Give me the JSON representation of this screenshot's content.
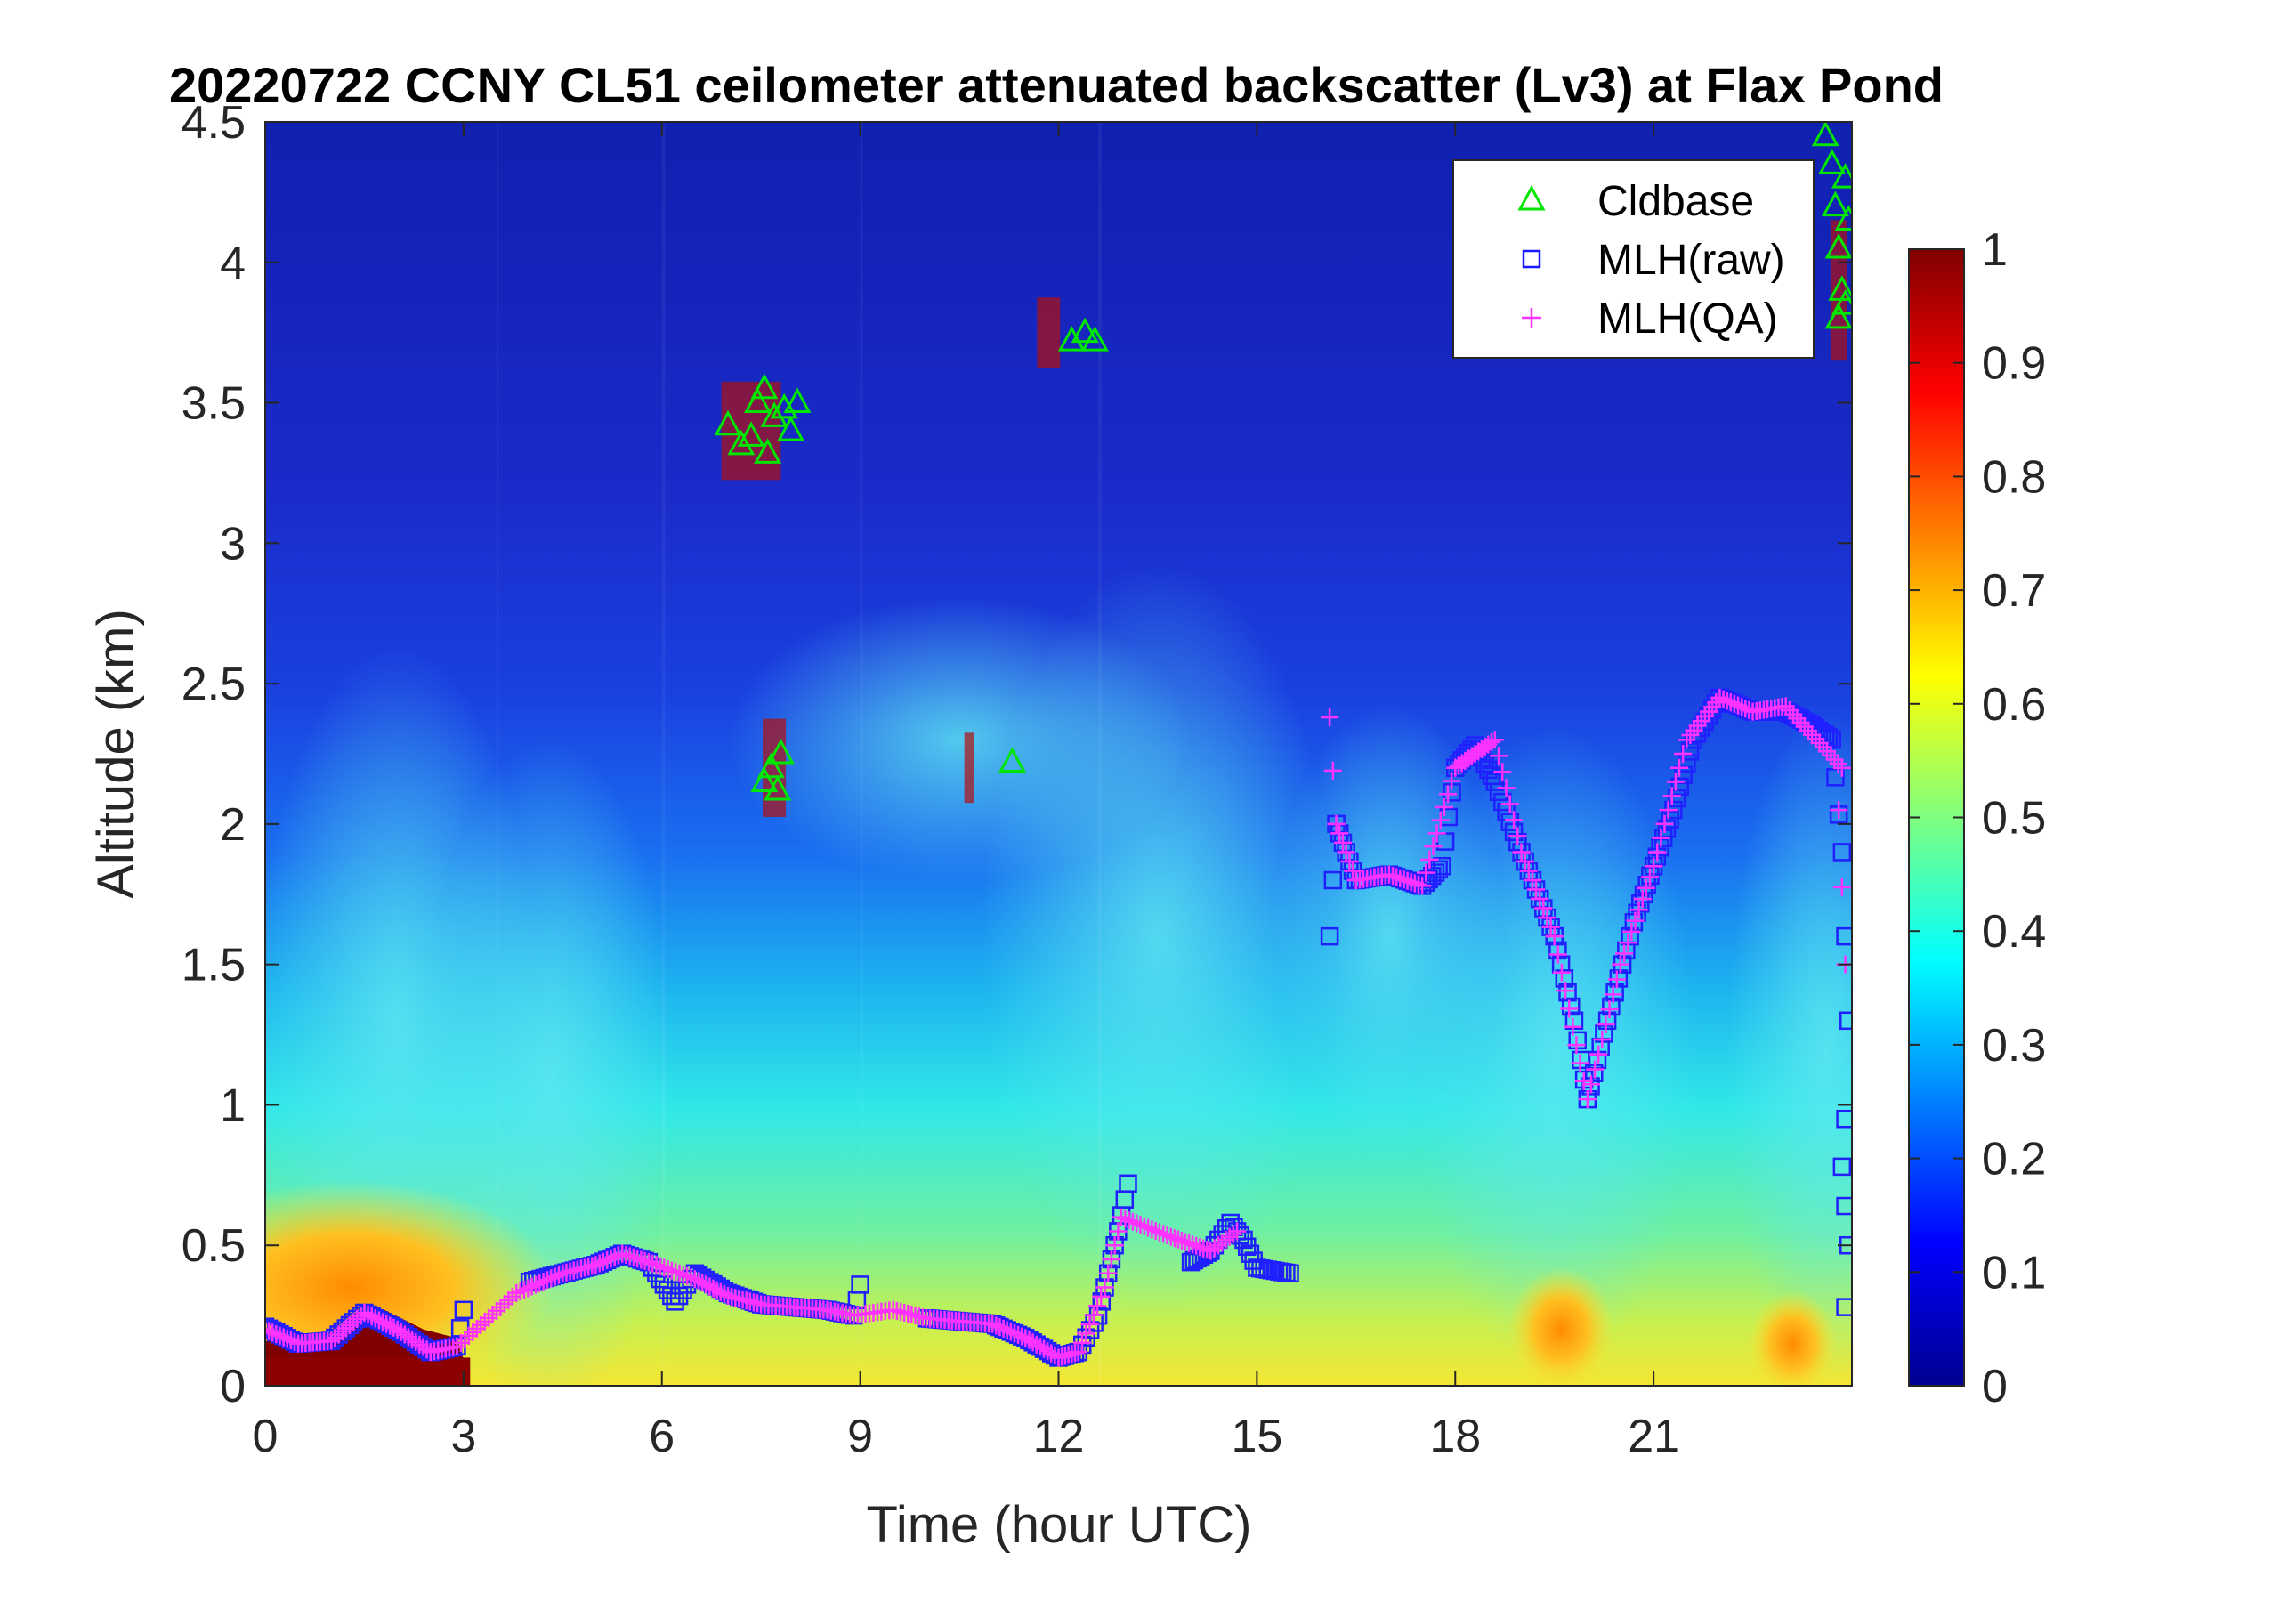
{
  "chart_data": {
    "type": "heatmap",
    "title": "20220722 CCNY CL51 ceilometer attenuated backscatter (Lv3) at Flax Pond",
    "xlabel": "Time (hour UTC)",
    "ylabel": "Altitude (km)",
    "xlim": [
      0,
      24
    ],
    "ylim": [
      0,
      4.5
    ],
    "xticks": [
      "0",
      "3",
      "6",
      "9",
      "12",
      "15",
      "18",
      "21"
    ],
    "yticks": [
      "0",
      "0.5",
      "1",
      "1.5",
      "2",
      "2.5",
      "3",
      "3.5",
      "4",
      "4.5"
    ],
    "colorbar": {
      "range": [
        0,
        1
      ],
      "ticks": [
        "0",
        "0.1",
        "0.2",
        "0.3",
        "0.4",
        "0.5",
        "0.6",
        "0.7",
        "0.8",
        "0.9",
        "1"
      ],
      "colormap": "jet"
    },
    "legend": {
      "position": "top-right",
      "entries": [
        {
          "name": "Cldbase",
          "marker": "triangle",
          "color": "#00e600"
        },
        {
          "name": "MLH(raw)",
          "marker": "square",
          "color": "#1a1aff"
        },
        {
          "name": "MLH(QA)",
          "marker": "plus",
          "color": "#ff33ff"
        }
      ]
    },
    "series": [
      {
        "name": "Cldbase",
        "points": [
          [
            7.0,
            3.42
          ],
          [
            7.2,
            3.35
          ],
          [
            7.35,
            3.38
          ],
          [
            7.45,
            3.5
          ],
          [
            7.55,
            3.55
          ],
          [
            7.6,
            3.32
          ],
          [
            7.7,
            3.45
          ],
          [
            7.85,
            3.48
          ],
          [
            7.95,
            3.4
          ],
          [
            8.05,
            3.5
          ],
          [
            7.55,
            2.15
          ],
          [
            7.65,
            2.2
          ],
          [
            7.75,
            2.12
          ],
          [
            7.8,
            2.25
          ],
          [
            11.3,
            2.22
          ],
          [
            12.2,
            3.72
          ],
          [
            12.4,
            3.75
          ],
          [
            12.55,
            3.72
          ],
          [
            23.6,
            4.45
          ],
          [
            23.7,
            4.35
          ],
          [
            23.75,
            4.2
          ],
          [
            23.8,
            4.05
          ],
          [
            23.85,
            3.9
          ],
          [
            23.9,
            4.3
          ],
          [
            23.95,
            4.15
          ],
          [
            23.8,
            3.8
          ],
          [
            23.9,
            3.85
          ]
        ]
      },
      {
        "name": "MLH(raw)",
        "points": [
          [
            0.0,
            0.21
          ],
          [
            0.5,
            0.15
          ],
          [
            1.0,
            0.16
          ],
          [
            1.5,
            0.26
          ],
          [
            2.0,
            0.2
          ],
          [
            2.5,
            0.12
          ],
          [
            2.9,
            0.14
          ],
          [
            3.0,
            0.27
          ],
          [
            4.0,
            0.37
          ],
          [
            4.5,
            0.4
          ],
          [
            5.0,
            0.43
          ],
          [
            5.4,
            0.47
          ],
          [
            5.8,
            0.44
          ],
          [
            6.2,
            0.3
          ],
          [
            6.5,
            0.4
          ],
          [
            7.0,
            0.33
          ],
          [
            7.5,
            0.29
          ],
          [
            8.0,
            0.28
          ],
          [
            8.5,
            0.27
          ],
          [
            8.9,
            0.25
          ],
          [
            9.0,
            0.36
          ],
          [
            10.0,
            0.24
          ],
          [
            10.5,
            0.23
          ],
          [
            11.0,
            0.22
          ],
          [
            11.5,
            0.17
          ],
          [
            12.0,
            0.1
          ],
          [
            12.3,
            0.12
          ],
          [
            12.6,
            0.25
          ],
          [
            12.9,
            0.55
          ],
          [
            13.05,
            0.72
          ],
          [
            14.0,
            0.44
          ],
          [
            14.3,
            0.48
          ],
          [
            14.6,
            0.58
          ],
          [
            14.8,
            0.52
          ],
          [
            15.0,
            0.42
          ],
          [
            15.5,
            0.4
          ],
          [
            16.1,
            1.6
          ],
          [
            16.2,
            2.0
          ],
          [
            16.5,
            1.8
          ],
          [
            17.0,
            1.82
          ],
          [
            17.5,
            1.78
          ],
          [
            17.8,
            1.85
          ],
          [
            18.0,
            2.2
          ],
          [
            18.3,
            2.28
          ],
          [
            18.6,
            2.15
          ],
          [
            19.0,
            1.9
          ],
          [
            19.5,
            1.6
          ],
          [
            19.8,
            1.3
          ],
          [
            20.0,
            1.02
          ],
          [
            20.3,
            1.3
          ],
          [
            20.7,
            1.65
          ],
          [
            21.0,
            1.85
          ],
          [
            21.3,
            2.05
          ],
          [
            21.6,
            2.3
          ],
          [
            22.0,
            2.45
          ],
          [
            22.5,
            2.4
          ],
          [
            23.0,
            2.4
          ],
          [
            23.4,
            2.35
          ],
          [
            23.7,
            2.3
          ],
          [
            23.85,
            1.9
          ],
          [
            23.9,
            1.6
          ],
          [
            23.95,
            1.3
          ],
          [
            23.9,
            0.95
          ],
          [
            23.85,
            0.78
          ],
          [
            23.95,
            0.5
          ],
          [
            23.9,
            0.28
          ]
        ]
      },
      {
        "name": "MLH(QA)",
        "points": [
          [
            0.0,
            0.2
          ],
          [
            0.5,
            0.15
          ],
          [
            1.0,
            0.16
          ],
          [
            1.5,
            0.26
          ],
          [
            2.0,
            0.2
          ],
          [
            2.5,
            0.12
          ],
          [
            2.9,
            0.14
          ],
          [
            3.8,
            0.33
          ],
          [
            4.5,
            0.4
          ],
          [
            5.0,
            0.43
          ],
          [
            5.4,
            0.47
          ],
          [
            5.8,
            0.44
          ],
          [
            6.5,
            0.38
          ],
          [
            7.0,
            0.32
          ],
          [
            7.5,
            0.29
          ],
          [
            8.0,
            0.28
          ],
          [
            8.5,
            0.27
          ],
          [
            8.9,
            0.25
          ],
          [
            9.5,
            0.27
          ],
          [
            10.0,
            0.24
          ],
          [
            10.5,
            0.23
          ],
          [
            11.0,
            0.22
          ],
          [
            11.5,
            0.17
          ],
          [
            12.0,
            0.1
          ],
          [
            12.3,
            0.12
          ],
          [
            12.7,
            0.35
          ],
          [
            12.95,
            0.6
          ],
          [
            13.7,
            0.53
          ],
          [
            14.3,
            0.48
          ],
          [
            14.7,
            0.55
          ],
          [
            16.1,
            2.38
          ],
          [
            16.2,
            2.0
          ],
          [
            16.5,
            1.8
          ],
          [
            17.0,
            1.82
          ],
          [
            17.5,
            1.78
          ],
          [
            18.0,
            2.2
          ],
          [
            18.3,
            2.25
          ],
          [
            18.6,
            2.3
          ],
          [
            19.0,
            1.9
          ],
          [
            19.5,
            1.6
          ],
          [
            20.0,
            1.02
          ],
          [
            20.5,
            1.5
          ],
          [
            21.0,
            1.85
          ],
          [
            21.5,
            2.3
          ],
          [
            22.0,
            2.45
          ],
          [
            22.5,
            2.4
          ],
          [
            23.0,
            2.42
          ],
          [
            23.85,
            2.2
          ],
          [
            23.8,
            2.05
          ],
          [
            23.9,
            1.5
          ]
        ]
      }
    ]
  }
}
